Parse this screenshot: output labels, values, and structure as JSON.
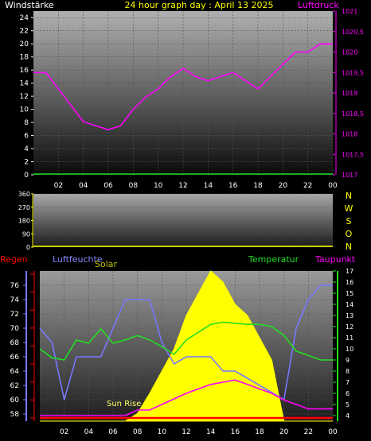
{
  "header": {
    "title": "24 hour graph day : April 13 2025",
    "left_label": "Windstärke",
    "right_label": "Luftdruck"
  },
  "direction_labels": [
    "N",
    "W",
    "S",
    "O",
    "N"
  ],
  "bottom_header": {
    "regen": "Regen",
    "luftfeuchte": "Luftfeuchte",
    "solar": "Solar",
    "temperatur": "Temperatur",
    "taupunkt": "Taupunkt"
  },
  "annotation": "Sun Rise",
  "colors": {
    "wind_axis": "#ffffff",
    "pressure": "#ff00ff",
    "title": "#ffff00",
    "humidity": "#7777ff",
    "temperature": "#22dd22",
    "dewpoint": "#ff00ff",
    "solar": "#ffff00",
    "rain": "#ff0000",
    "winddir": "#ffff00"
  },
  "chart_data": [
    {
      "type": "line",
      "title": "24 hour graph day : April 13 2025",
      "x_ticks": [
        "02",
        "04",
        "06",
        "08",
        "10",
        "12",
        "14",
        "16",
        "18",
        "20",
        "22",
        "00"
      ],
      "x": [
        0,
        1,
        2,
        3,
        4,
        5,
        6,
        7,
        8,
        9,
        10,
        11,
        12,
        13,
        14,
        15,
        16,
        17,
        18,
        19,
        20,
        21,
        22,
        23,
        24
      ],
      "left_axis": {
        "label": "Windstärke",
        "ylim": [
          0,
          25
        ],
        "ticks": [
          0,
          2,
          4,
          6,
          8,
          10,
          12,
          14,
          16,
          18,
          20,
          22,
          24
        ]
      },
      "right_axis": {
        "label": "Luftdruck",
        "ylim": [
          1017,
          1021
        ],
        "ticks": [
          1017,
          1017.5,
          1018,
          1018.5,
          1019,
          1019.5,
          1020,
          1020.5,
          1021
        ]
      },
      "series": [
        {
          "name": "Luftdruck",
          "axis": "right",
          "values": [
            1019.5,
            1019.5,
            1019.1,
            1018.7,
            1018.3,
            1018.2,
            1018.1,
            1018.2,
            1018.6,
            1018.9,
            1019.1,
            1019.4,
            1019.6,
            1019.4,
            1019.3,
            1019.4,
            1019.5,
            1019.3,
            1019.1,
            1019.4,
            1019.7,
            1020.0,
            1020.0,
            1020.2,
            1020.2
          ]
        },
        {
          "name": "Windstärke",
          "axis": "left",
          "values": [
            0,
            0,
            0,
            0,
            0,
            0,
            0,
            0,
            0,
            0,
            0,
            0,
            0,
            0,
            0,
            0,
            0,
            0,
            0,
            0,
            0,
            0,
            0,
            0,
            0
          ]
        }
      ]
    },
    {
      "type": "line",
      "x_ticks": [
        "02",
        "04",
        "06",
        "08",
        "10",
        "12",
        "14",
        "16",
        "18",
        "20",
        "22",
        "00"
      ],
      "left_axis": {
        "ylim": [
          0,
          360
        ],
        "ticks": [
          0,
          90,
          180,
          270,
          360
        ]
      },
      "series": [
        {
          "name": "Windrichtung",
          "x": [
            0,
            24
          ],
          "values": [
            0,
            0
          ]
        }
      ]
    },
    {
      "type": "area",
      "x_ticks": [
        "02",
        "04",
        "06",
        "08",
        "10",
        "12",
        "14",
        "16",
        "18",
        "20",
        "22",
        "00"
      ],
      "x": [
        0,
        1,
        2,
        3,
        4,
        5,
        6,
        7,
        8,
        9,
        10,
        11,
        12,
        13,
        14,
        15,
        16,
        17,
        18,
        19,
        20,
        21,
        22,
        23,
        24
      ],
      "humidity_axis": {
        "label": "Luftfeuchte",
        "ylim": [
          57,
          78
        ],
        "ticks": [
          58,
          60,
          62,
          64,
          66,
          68,
          70,
          72,
          74,
          76
        ]
      },
      "temperature_axis": {
        "label": "Temperatur",
        "ylim": [
          3.5,
          17
        ],
        "ticks": [
          4,
          5,
          6,
          7,
          8,
          9,
          10,
          11,
          12,
          13,
          14,
          15,
          16,
          17
        ]
      },
      "rain_axis": {
        "label": "Regen",
        "ticks": [
          0,
          1,
          2,
          3,
          4,
          5,
          6,
          7,
          8
        ]
      },
      "series": [
        {
          "name": "Luftfeuchte",
          "axis": "humidity",
          "values": [
            70,
            68,
            60,
            66,
            66,
            66,
            70,
            74,
            74,
            74,
            68,
            65,
            66,
            66,
            66,
            64,
            64,
            63,
            62,
            61,
            60,
            70,
            74,
            76,
            76
          ]
        },
        {
          "name": "Temperatur",
          "axis": "temperature",
          "values": [
            10,
            9.2,
            9,
            10.8,
            10.5,
            11.8,
            10.5,
            10.8,
            11.2,
            10.8,
            10.2,
            9.5,
            10.8,
            11.5,
            12.2,
            12.4,
            12.3,
            12.2,
            12.2,
            12,
            11.2,
            9.8,
            9.4,
            9,
            9
          ]
        },
        {
          "name": "Taupunkt",
          "axis": "temperature",
          "values": [
            4,
            4,
            4,
            4,
            4,
            4,
            4,
            4,
            4.5,
            4.5,
            5,
            5.5,
            6,
            6.4,
            6.8,
            7,
            7.2,
            6.8,
            6.4,
            6,
            5.4,
            5,
            4.6,
            4.6,
            4.6
          ]
        },
        {
          "name": "Solar",
          "axis": "temperature",
          "values": [
            3.5,
            3.5,
            3.5,
            3.5,
            3.5,
            3.5,
            3.5,
            3.5,
            4.2,
            6,
            8,
            10,
            13,
            15,
            17,
            16,
            14,
            13,
            11,
            9,
            3.5,
            3.5,
            3.5,
            3.5,
            3.5
          ]
        },
        {
          "name": "Regen",
          "axis": "rain",
          "values": [
            0,
            0,
            0,
            0,
            0,
            0,
            0,
            0,
            0,
            0,
            0,
            0,
            0,
            0,
            0,
            0,
            0,
            0,
            0,
            0,
            0,
            0,
            0,
            0,
            0
          ]
        }
      ]
    }
  ]
}
